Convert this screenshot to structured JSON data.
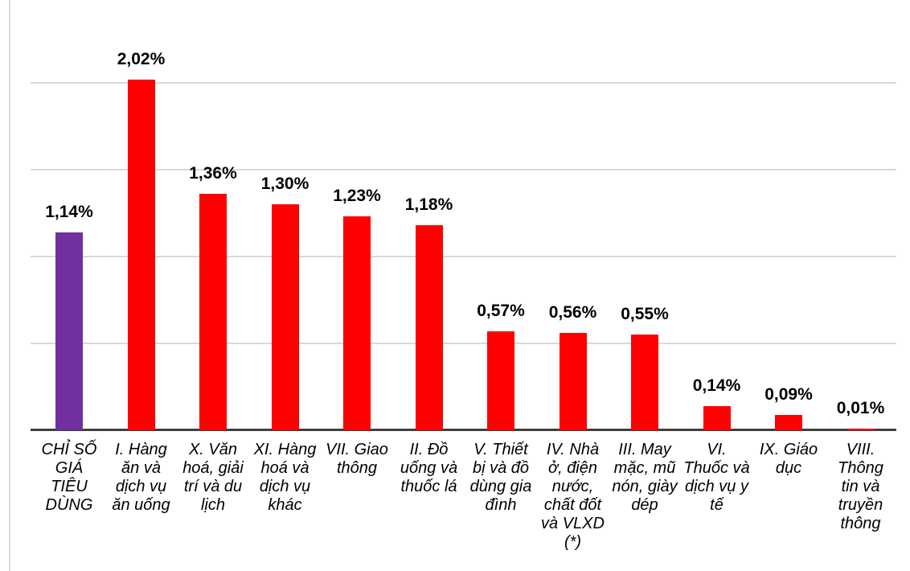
{
  "chart_data": {
    "type": "bar",
    "title": "",
    "categories": [
      "CHỈ SỐ\nGIÁ\nTIÊU\nDÙNG",
      "I. Hàng\năn và\ndịch vụ\năn uống",
      "X. Văn\nhoá, giải\ntrí và du\nlịch",
      "XI. Hàng\nhoá và\ndịch vụ\nkhác",
      "VII. Giao\nthông",
      "II. Đồ\nuống và\nthuốc lá",
      "V. Thiết\nbị và đồ\ndùng gia\nđình",
      "IV. Nhà\nở, điện\nnước,\nchất đốt\nvà VLXD\n(*)",
      "III. May\nmặc, mũ\nnón, giày\ndép",
      "VI.\nThuốc và\ndịch vụ y\ntế",
      "IX. Giáo\ndục",
      "VIII.\nThông\ntin và\ntruyền\nthông"
    ],
    "values": [
      1.14,
      2.02,
      1.36,
      1.3,
      1.23,
      1.18,
      0.57,
      0.56,
      0.55,
      0.14,
      0.09,
      0.01
    ],
    "value_labels": [
      "1,14%",
      "2,02%",
      "1,36%",
      "1,30%",
      "1,23%",
      "1,18%",
      "0,57%",
      "0,56%",
      "0,55%",
      "0,14%",
      "0,09%",
      "0,01%"
    ],
    "bar_colors": [
      "#7030A0",
      "#FF0000",
      "#FF0000",
      "#FF0000",
      "#FF0000",
      "#FF0000",
      "#FF0000",
      "#FF0000",
      "#FF0000",
      "#FF0000",
      "#FF0000",
      "#FF0000"
    ],
    "ylim": [
      0,
      2.0
    ],
    "grid_step": 0.5,
    "grid": "horizontal gridlines on, y tick labels hidden",
    "legend": "none",
    "decimal_separator": ","
  },
  "colors": {
    "bar_default": "#FF0000",
    "bar_highlight": "#7030A0",
    "gridline": "#D9D9D9",
    "axis_line": "#3F3F3F",
    "border": "#D9D9D9",
    "background": "#FFFFFF",
    "label_text": "#000000"
  }
}
